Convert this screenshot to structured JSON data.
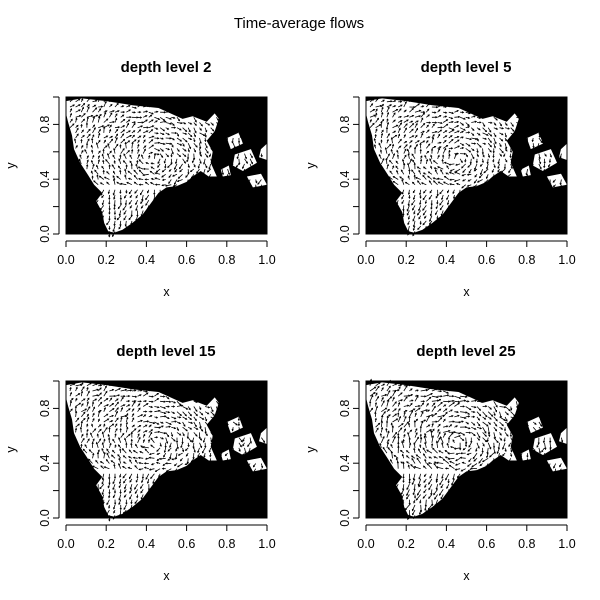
{
  "chart_data": {
    "type": "other",
    "title": "Time-average flows",
    "panels": [
      {
        "title": "depth level 2",
        "xlabel": "x",
        "ylabel": "y",
        "xlim": [
          0,
          1
        ],
        "ylim": [
          0,
          1
        ]
      },
      {
        "title": "depth level 5",
        "xlabel": "x",
        "ylabel": "y",
        "xlim": [
          0,
          1
        ],
        "ylim": [
          0,
          1
        ]
      },
      {
        "title": "depth level 15",
        "xlabel": "x",
        "ylabel": "y",
        "xlim": [
          0,
          1
        ],
        "ylim": [
          0,
          1
        ]
      },
      {
        "title": "depth level 25",
        "xlabel": "x",
        "ylabel": "y",
        "xlim": [
          0,
          1
        ],
        "ylim": [
          0,
          1
        ]
      }
    ],
    "x_ticks": [
      "0.0",
      "0.2",
      "0.4",
      "0.6",
      "0.8",
      "1.0"
    ],
    "y_ticks": [
      "0.0",
      "0.4",
      "0.8"
    ],
    "land_color": "#000000",
    "water_color": "#ffffff",
    "arrow_color": "#000000",
    "grid": false
  }
}
